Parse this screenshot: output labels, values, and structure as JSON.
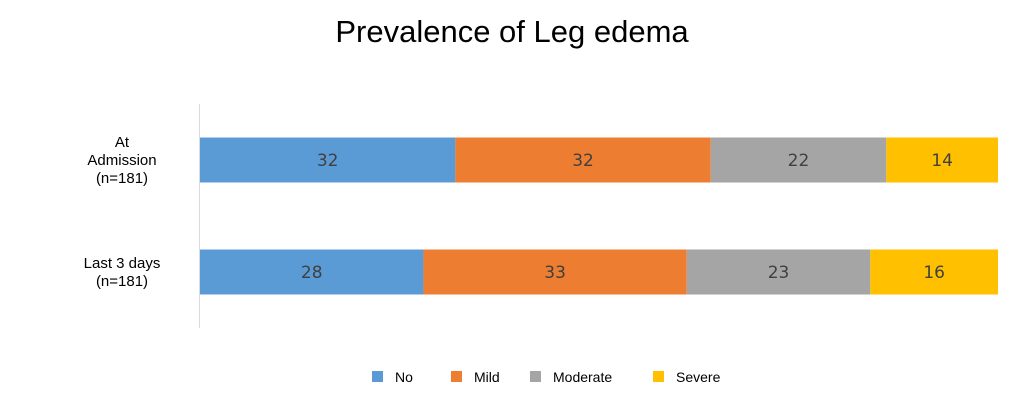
{
  "chart_data": {
    "type": "bar",
    "orientation": "horizontal",
    "stacked": true,
    "title": "Prevalence of Leg edema",
    "xlabel": "",
    "ylabel": "",
    "xlim": [
      0,
      100
    ],
    "grid": false,
    "legend_position": "bottom",
    "categories": [
      [
        "At",
        "Admission",
        "(n=181)"
      ],
      [
        "Last 3 days",
        "(n=181)"
      ]
    ],
    "series": [
      {
        "name": "No",
        "color": "#5B9BD5",
        "values": [
          32,
          28
        ]
      },
      {
        "name": "Mild",
        "color": "#ED7D31",
        "values": [
          32,
          33
        ]
      },
      {
        "name": "Moderate",
        "color": "#A5A5A5",
        "values": [
          22,
          23
        ]
      },
      {
        "name": "Severe",
        "color": "#FFC000",
        "values": [
          14,
          16
        ]
      }
    ]
  }
}
